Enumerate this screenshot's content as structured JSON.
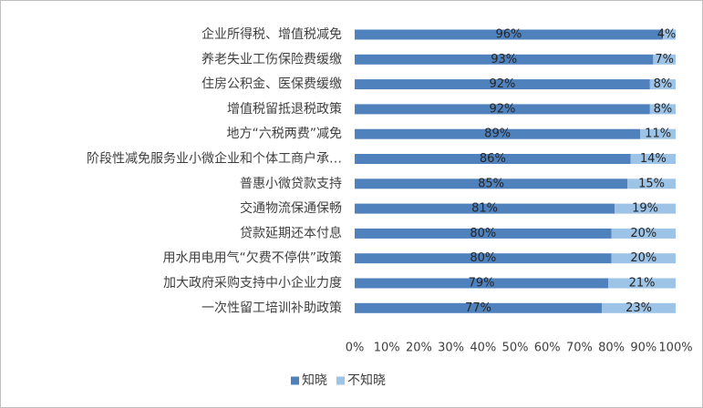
{
  "chart_data": {
    "type": "bar",
    "orientation": "horizontal",
    "stacked": true,
    "categories": [
      "企业所得税、增值税减免",
      "养老失业工伤保险费缓缴",
      "住房公积金、医保费缓缴",
      "增值税留抵退税政策",
      "地方“六税两费”减免",
      "阶段性减免服务业小微企业和个体工商户承…",
      "普惠小微贷款支持",
      "交通物流保通保畅",
      "贷款延期还本付息",
      "用水用电用气“欠费不停供”政策",
      "加大政府采购支持中小企业力度",
      "一次性留工培训补助政策"
    ],
    "series": [
      {
        "name": "知晓",
        "color": "#4f81bd",
        "values": [
          96,
          93,
          92,
          92,
          89,
          86,
          85,
          81,
          80,
          80,
          79,
          77
        ],
        "labels": [
          "96%",
          "93%",
          "92%",
          "92%",
          "89%",
          "86%",
          "85%",
          "81%",
          "80%",
          "80%",
          "79%",
          "77%"
        ]
      },
      {
        "name": "不知晓",
        "color": "#9dc3e6",
        "values": [
          4,
          7,
          8,
          8,
          11,
          14,
          15,
          19,
          20,
          20,
          21,
          23
        ],
        "labels": [
          "4%",
          "7%",
          "8%",
          "8%",
          "11%",
          "14%",
          "15%",
          "19%",
          "20%",
          "20%",
          "21%",
          "23%"
        ]
      }
    ],
    "xlim": [
      0,
      100
    ],
    "x_ticks": [
      0,
      10,
      20,
      30,
      40,
      50,
      60,
      70,
      80,
      90,
      100
    ],
    "x_tick_labels": [
      "0%",
      "10%",
      "20%",
      "30%",
      "40%",
      "50%",
      "60%",
      "70%",
      "80%",
      "90%",
      "100%"
    ],
    "grid": false,
    "legend": "bottom",
    "title": "",
    "xlabel": "",
    "ylabel": ""
  }
}
